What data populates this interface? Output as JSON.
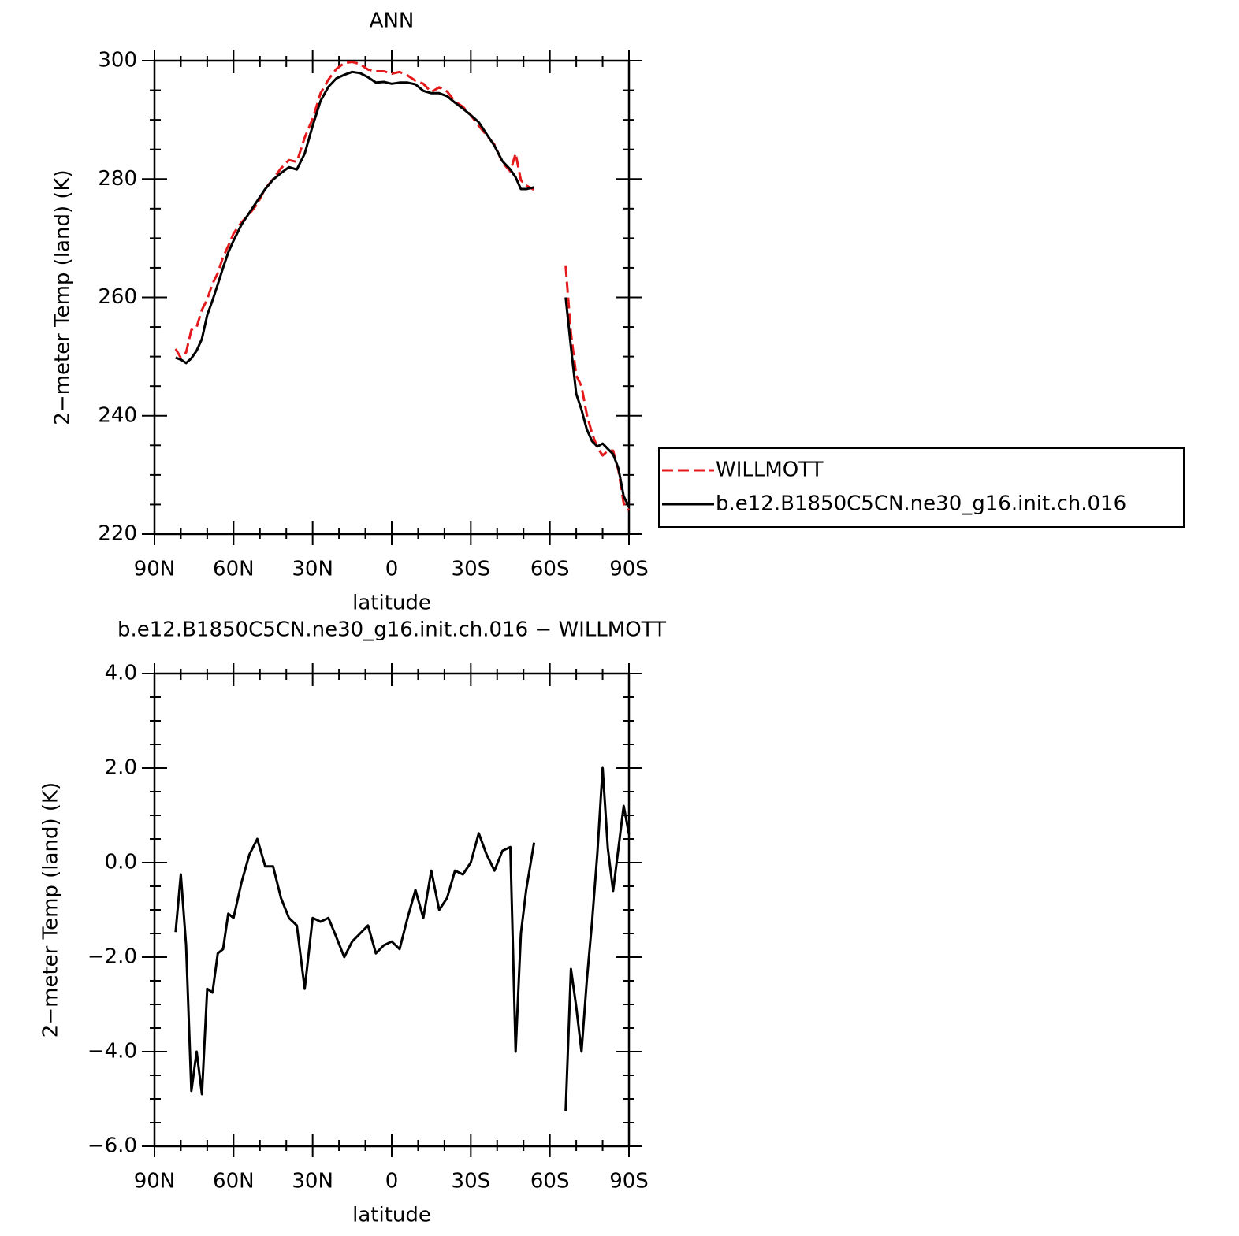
{
  "chart_data": [
    {
      "type": "line",
      "title": "ANN",
      "xlabel": "latitude",
      "ylabel": "2−meter Temp (land) (K)",
      "x": [
        82,
        80,
        78,
        76,
        74,
        72,
        70,
        68,
        66,
        64,
        62,
        60,
        57,
        54,
        51,
        48,
        45,
        42,
        39,
        36,
        33,
        30,
        27,
        24,
        21,
        18,
        15,
        12,
        9,
        6,
        3,
        0,
        -3,
        -6,
        -9,
        -12,
        -15,
        -18,
        -21,
        -24,
        -27,
        -30,
        -33,
        -36,
        -39,
        -42,
        -45,
        -47,
        -49,
        -51,
        -54,
        null,
        -66,
        -68,
        -70,
        -72,
        -74,
        -76,
        -78,
        -80,
        -82,
        -84,
        -86,
        -88,
        -90
      ],
      "series": [
        {
          "name": "WILLMOTT",
          "color": "#e41a1c",
          "dashed": true,
          "values": [
            251.3,
            249.8,
            250.7,
            254.5,
            255.0,
            257.9,
            259.7,
            262.3,
            264.1,
            266.8,
            268.7,
            270.8,
            272.7,
            274.1,
            275.8,
            278.4,
            280.0,
            281.8,
            283.2,
            282.9,
            287.0,
            290.2,
            294.5,
            296.8,
            298.6,
            299.6,
            299.8,
            299.4,
            298.5,
            298.2,
            298.2,
            297.8,
            298.1,
            297.5,
            296.6,
            296.1,
            294.7,
            295.5,
            294.8,
            293.1,
            292.2,
            290.8,
            289.0,
            287.4,
            285.8,
            282.8,
            281.3,
            284.3,
            279.8,
            278.9,
            278.2,
            null,
            265.3,
            253.9,
            246.8,
            245.0,
            240.2,
            237.0,
            234.6,
            233.3,
            234.1,
            234.1,
            230.8,
            225.2,
            224.0
          ]
        },
        {
          "name": "b.e12.B1850C5CN.ne30_g16.init.ch.016",
          "color": "#000000",
          "dashed": false,
          "values": [
            249.8,
            249.5,
            248.9,
            249.7,
            251.0,
            253.0,
            257.0,
            259.5,
            262.2,
            265.0,
            267.6,
            269.6,
            272.3,
            274.3,
            276.3,
            278.3,
            279.9,
            281.0,
            282.0,
            281.6,
            284.3,
            289.0,
            293.2,
            295.6,
            297.0,
            297.6,
            298.1,
            297.9,
            297.2,
            296.3,
            296.4,
            296.1,
            296.3,
            296.3,
            296.0,
            294.9,
            294.5,
            294.5,
            294.0,
            292.9,
            291.9,
            290.8,
            289.6,
            287.6,
            285.6,
            283.0,
            281.6,
            280.3,
            278.3,
            278.3,
            278.6,
            null,
            260.0,
            251.6,
            243.7,
            241.0,
            237.7,
            235.7,
            234.8,
            235.3,
            234.4,
            233.5,
            231.1,
            226.4,
            224.6
          ]
        }
      ],
      "xlim": [
        90,
        -90
      ],
      "xticks": [
        {
          "value": 90,
          "label": "90N"
        },
        {
          "value": 60,
          "label": "60N"
        },
        {
          "value": 30,
          "label": "30N"
        },
        0,
        {
          "value": -30,
          "label": "30S"
        },
        {
          "value": -60,
          "label": "60S"
        },
        {
          "value": -90,
          "label": "90S"
        }
      ],
      "xminorticks": [
        80,
        70,
        50,
        40,
        20,
        10,
        -10,
        -20,
        -40,
        -50,
        -70,
        -80
      ],
      "ylim": [
        220,
        300
      ],
      "yticks": [
        220,
        240,
        260,
        280,
        300
      ],
      "yminorticks": [
        225,
        230,
        235,
        245,
        250,
        255,
        265,
        270,
        275,
        285,
        290,
        295
      ],
      "legend": "right"
    },
    {
      "type": "line",
      "title": "b.e12.B1850C5CN.ne30_g16.init.ch.016 − WILLMOTT",
      "xlabel": "latitude",
      "ylabel": "2−meter Temp (land) (K)",
      "x": [
        82,
        80,
        78,
        76,
        74,
        72,
        70,
        68,
        66,
        64,
        62,
        60,
        57,
        54,
        51,
        48,
        45,
        42,
        39,
        36,
        33,
        30,
        27,
        24,
        21,
        18,
        15,
        12,
        9,
        6,
        3,
        0,
        -3,
        -6,
        -9,
        -12,
        -15,
        -18,
        -21,
        -24,
        -27,
        -30,
        -33,
        -36,
        -39,
        -42,
        -45,
        -47,
        -49,
        -51,
        -54,
        null,
        -66,
        -68,
        -70,
        -72,
        -74,
        -76,
        -78,
        -80,
        -82,
        -84,
        -86,
        -88,
        -90
      ],
      "color": "#000000",
      "values": [
        -1.47,
        -0.25,
        -1.75,
        -4.83,
        -4.0,
        -4.9,
        -2.67,
        -2.75,
        -1.92,
        -1.83,
        -1.08,
        -1.17,
        -0.42,
        0.17,
        0.5,
        -0.08,
        -0.08,
        -0.75,
        -1.17,
        -1.33,
        -2.67,
        -1.17,
        -1.25,
        -1.17,
        -1.58,
        -2.0,
        -1.67,
        -1.5,
        -1.33,
        -1.92,
        -1.75,
        -1.67,
        -1.83,
        -1.17,
        -0.58,
        -1.17,
        -0.17,
        -1.0,
        -0.75,
        -0.17,
        -0.25,
        0.0,
        0.62,
        0.17,
        -0.17,
        0.25,
        0.33,
        -4.0,
        -1.5,
        -0.58,
        0.42,
        null,
        -5.25,
        -2.25,
        -3.05,
        -4.0,
        -2.5,
        -1.25,
        0.2,
        2.0,
        0.3,
        -0.6,
        0.3,
        1.2,
        0.6
      ],
      "xlim": [
        90,
        -90
      ],
      "xticks": [
        {
          "value": 90,
          "label": "90N"
        },
        {
          "value": 60,
          "label": "60N"
        },
        {
          "value": 30,
          "label": "30N"
        },
        0,
        {
          "value": -30,
          "label": "30S"
        },
        {
          "value": -60,
          "label": "60S"
        },
        {
          "value": -90,
          "label": "90S"
        }
      ],
      "xminorticks": [
        80,
        70,
        50,
        40,
        20,
        10,
        -10,
        -20,
        -40,
        -50,
        -70,
        -80
      ],
      "ylim": [
        -6,
        4
      ],
      "yticks": [
        {
          "value": -6,
          "label": "−6.0"
        },
        {
          "value": -4,
          "label": "−4.0"
        },
        {
          "value": -2,
          "label": "−2.0"
        },
        {
          "value": 0,
          "label": "0.0"
        },
        {
          "value": 2,
          "label": "2.0"
        },
        {
          "value": 4,
          "label": "4.0"
        }
      ],
      "yminorticks": [
        -5.5,
        -5,
        -4.5,
        -3.5,
        -3,
        -2.5,
        -1.5,
        -1,
        -0.5,
        0.5,
        1,
        1.5,
        2.5,
        3,
        3.5
      ]
    }
  ]
}
